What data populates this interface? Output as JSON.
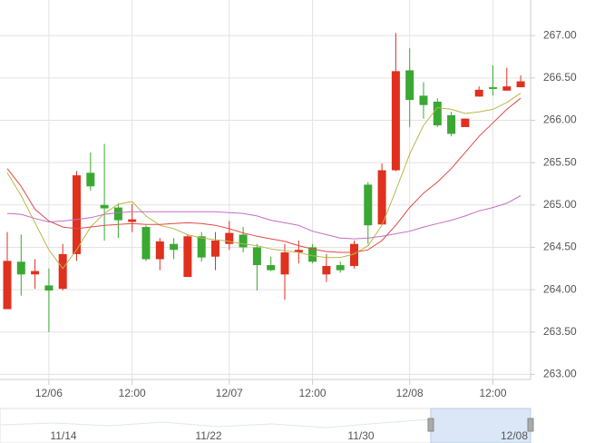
{
  "chart_data": {
    "type": "candlestick",
    "categories": [
      null,
      null,
      null,
      "12/06",
      null,
      null,
      null,
      null,
      null,
      "12:00",
      null,
      null,
      null,
      null,
      null,
      null,
      "12/07",
      null,
      null,
      null,
      null,
      null,
      "12:00",
      null,
      null,
      null,
      null,
      null,
      null,
      "12/08",
      null,
      null,
      null,
      null,
      null,
      "12:00",
      null,
      null
    ],
    "open": [
      263.77,
      264.33,
      264.18,
      264.05,
      264.01,
      264.42,
      265.38,
      265.0,
      264.97,
      264.8,
      264.74,
      264.36,
      264.54,
      264.15,
      264.63,
      264.39,
      264.54,
      264.65,
      264.5,
      264.29,
      264.18,
      264.44,
      264.5,
      264.18,
      264.29,
      264.28,
      265.24,
      264.77,
      265.41,
      266.59,
      266.29,
      266.22,
      266.06,
      265.92,
      266.28,
      266.39,
      266.35,
      266.39
    ],
    "high": [
      264.68,
      264.65,
      264.36,
      264.25,
      264.54,
      265.4,
      265.62,
      265.72,
      265.02,
      265.01,
      264.76,
      264.61,
      264.61,
      264.65,
      264.68,
      264.68,
      264.81,
      264.74,
      264.54,
      264.39,
      264.54,
      264.58,
      264.54,
      264.42,
      264.33,
      264.58,
      265.27,
      265.49,
      267.03,
      266.85,
      266.45,
      266.26,
      266.1,
      266.02,
      266.4,
      266.65,
      266.62,
      266.53
    ],
    "low": [
      263.77,
      263.93,
      264.01,
      263.5,
      263.99,
      264.34,
      265.17,
      264.58,
      264.61,
      264.68,
      264.34,
      264.23,
      264.36,
      264.15,
      264.33,
      264.23,
      264.47,
      264.44,
      263.99,
      264.22,
      263.88,
      264.31,
      264.31,
      264.09,
      264.2,
      264.25,
      264.54,
      264.76,
      265.4,
      265.92,
      266.02,
      265.92,
      265.81,
      265.92,
      266.28,
      266.29,
      266.35,
      266.39
    ],
    "close": [
      264.34,
      264.18,
      264.22,
      263.99,
      264.42,
      265.35,
      265.22,
      264.96,
      264.82,
      264.83,
      264.36,
      264.57,
      264.47,
      264.63,
      264.38,
      264.58,
      264.67,
      264.5,
      264.29,
      264.23,
      264.44,
      264.47,
      264.33,
      264.28,
      264.23,
      264.54,
      264.76,
      265.41,
      266.58,
      266.24,
      266.18,
      265.94,
      265.84,
      266.02,
      266.36,
      266.37,
      266.4,
      266.46
    ],
    "up_color": "#e0301e",
    "down_color": "#3aa832",
    "series": [
      {
        "color": "#b8b84a",
        "values": [
          265.38,
          265.11,
          264.79,
          264.47,
          264.25,
          264.47,
          264.74,
          264.9,
          265.01,
          265.04,
          264.87,
          264.76,
          264.72,
          264.65,
          264.61,
          264.59,
          264.57,
          264.54,
          264.52,
          264.48,
          264.46,
          264.44,
          264.4,
          264.38,
          264.38,
          264.42,
          264.52,
          264.76,
          265.17,
          265.6,
          265.94,
          266.15,
          266.13,
          266.08,
          266.1,
          266.13,
          266.21,
          266.32
        ]
      },
      {
        "color": "#e04848",
        "values": [
          265.43,
          265.22,
          264.95,
          264.81,
          264.74,
          264.72,
          264.74,
          264.76,
          264.77,
          264.78,
          264.77,
          264.77,
          264.78,
          264.79,
          264.78,
          264.76,
          264.72,
          264.67,
          264.63,
          264.6,
          264.57,
          264.52,
          264.48,
          264.45,
          264.44,
          264.44,
          264.47,
          264.58,
          264.76,
          264.97,
          265.14,
          265.27,
          265.43,
          265.62,
          265.81,
          265.97,
          266.13,
          266.26
        ]
      },
      {
        "color": "#c46cc4",
        "values": [
          264.9,
          264.89,
          264.84,
          264.8,
          264.81,
          264.83,
          264.85,
          264.89,
          264.91,
          264.92,
          264.92,
          264.92,
          264.92,
          264.92,
          264.92,
          264.92,
          264.91,
          264.9,
          264.87,
          264.82,
          264.79,
          264.76,
          264.69,
          264.65,
          264.61,
          264.6,
          264.61,
          264.63,
          264.66,
          264.69,
          264.74,
          264.78,
          264.82,
          264.87,
          264.93,
          264.97,
          265.02,
          265.11
        ]
      }
    ],
    "ylim": [
      262.94,
      267.42
    ],
    "yticks": [
      {
        "value": 263,
        "label": "263.00"
      },
      {
        "value": 263.5,
        "label": "263.50"
      },
      {
        "value": 264,
        "label": "264.00"
      },
      {
        "value": 264.5,
        "label": "264.50"
      },
      {
        "value": 265,
        "label": "265.00"
      },
      {
        "value": 265.5,
        "label": "265.50"
      },
      {
        "value": 266,
        "label": "266.00"
      },
      {
        "value": 266.5,
        "label": "266.50"
      },
      {
        "value": 267,
        "label": "267.00"
      }
    ],
    "grid": true,
    "navigator_labels": [
      "11/14",
      "11/22",
      "11/30",
      "12/08"
    ]
  }
}
